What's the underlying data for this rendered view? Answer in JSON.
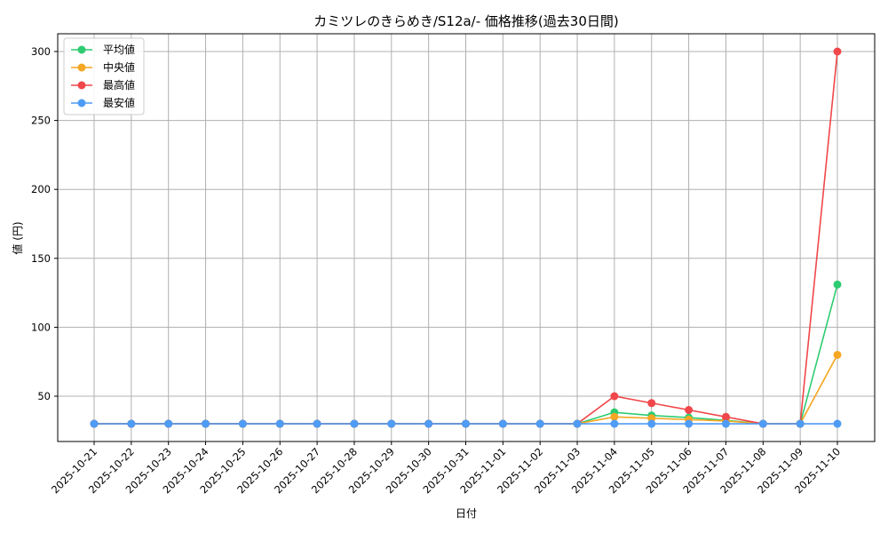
{
  "chart_data": {
    "type": "line",
    "title": "カミツレのきらめき/S12a/- 価格推移(過去30日間)",
    "xlabel": "日付",
    "ylabel": "値 (円)",
    "ylim": [
      16,
      313
    ],
    "yticks": [
      50,
      100,
      150,
      200,
      250,
      300
    ],
    "grid": true,
    "legend_position": "upper left",
    "x": [
      "2025-10-21",
      "2025-10-22",
      "2025-10-23",
      "2025-10-24",
      "2025-10-25",
      "2025-10-26",
      "2025-10-27",
      "2025-10-28",
      "2025-10-29",
      "2025-10-30",
      "2025-10-31",
      "2025-11-01",
      "2025-11-02",
      "2025-11-03",
      "2025-11-04",
      "2025-11-05",
      "2025-11-06",
      "2025-11-07",
      "2025-11-08",
      "2025-11-09",
      "2025-11-10"
    ],
    "series": [
      {
        "name": "平均値",
        "color": "#2ecc71",
        "values": [
          30,
          30,
          30,
          30,
          30,
          30,
          30,
          30,
          30,
          30,
          30,
          30,
          30,
          30,
          38.3,
          36,
          34.5,
          32.5,
          30,
          30,
          131
        ]
      },
      {
        "name": "中央値",
        "color": "#f5a623",
        "values": [
          30,
          30,
          30,
          30,
          30,
          30,
          30,
          30,
          30,
          30,
          30,
          30,
          30,
          30,
          35,
          34,
          33,
          32,
          30,
          30,
          80
        ]
      },
      {
        "name": "最高値",
        "color": "#f0474a",
        "values": [
          30,
          30,
          30,
          30,
          30,
          30,
          30,
          30,
          30,
          30,
          30,
          30,
          30,
          30,
          50,
          45,
          40,
          35,
          30,
          30,
          300
        ]
      },
      {
        "name": "最安値",
        "color": "#4e9cf5",
        "values": [
          30,
          30,
          30,
          30,
          30,
          30,
          30,
          30,
          30,
          30,
          30,
          30,
          30,
          30,
          30,
          30,
          30,
          30,
          30,
          30,
          30
        ]
      }
    ]
  }
}
